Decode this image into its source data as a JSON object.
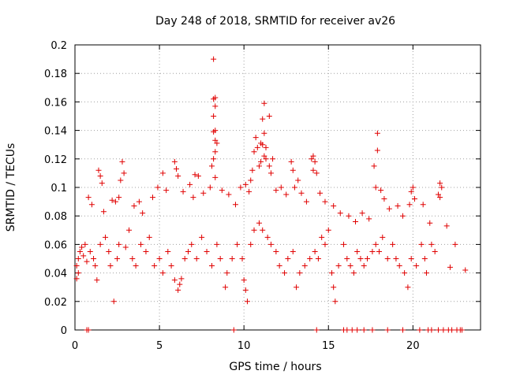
{
  "chart_data": {
    "type": "scatter",
    "title": "Day 248 of 2018, SRMTID for receiver av26",
    "xlabel": "GPS time / hours",
    "ylabel": "SRMTID / TECUs",
    "xlim": [
      0,
      24
    ],
    "ylim": [
      0,
      0.2
    ],
    "x_ticks": [
      0,
      5,
      10,
      15,
      20
    ],
    "x_tick_labels": [
      "0",
      "5",
      "10",
      "15",
      "20"
    ],
    "y_ticks": [
      0,
      0.02,
      0.04,
      0.06,
      0.08,
      0.1,
      0.12,
      0.14,
      0.16,
      0.18,
      0.2
    ],
    "y_tick_labels": [
      "0",
      "0.02",
      "0.04",
      "0.06",
      "0.08",
      "0.1",
      "0.12",
      "0.14",
      "0.16",
      "0.18",
      "0.2"
    ],
    "grid": true,
    "marker": "+",
    "color": "#e00000",
    "series": [
      {
        "name": "SRMTID",
        "points": [
          [
            8.2,
            0.19
          ],
          [
            8.3,
            0.163
          ],
          [
            8.2,
            0.162
          ],
          [
            8.3,
            0.157
          ],
          [
            8.2,
            0.15
          ],
          [
            8.3,
            0.14
          ],
          [
            8.2,
            0.139
          ],
          [
            8.3,
            0.133
          ],
          [
            8.4,
            0.131
          ],
          [
            8.3,
            0.125
          ],
          [
            8.2,
            0.12
          ],
          [
            8.1,
            0.115
          ],
          [
            8.3,
            0.107
          ],
          [
            11.2,
            0.159
          ],
          [
            11.5,
            0.15
          ],
          [
            11.1,
            0.148
          ],
          [
            11.2,
            0.138
          ],
          [
            11.0,
            0.131
          ],
          [
            11.1,
            0.13
          ],
          [
            11.3,
            0.128
          ],
          [
            11.2,
            0.122
          ],
          [
            11.3,
            0.12
          ],
          [
            11.0,
            0.118
          ],
          [
            11.5,
            0.115
          ],
          [
            11.6,
            0.11
          ],
          [
            11.7,
            0.12
          ],
          [
            10.7,
            0.135
          ],
          [
            10.8,
            0.128
          ],
          [
            10.6,
            0.125
          ],
          [
            10.9,
            0.115
          ],
          [
            10.5,
            0.112
          ],
          [
            10.4,
            0.105
          ],
          [
            17.9,
            0.138
          ],
          [
            17.9,
            0.126
          ],
          [
            17.7,
            0.115
          ],
          [
            17.8,
            0.1
          ],
          [
            18.1,
            0.098
          ],
          [
            18.3,
            0.092
          ],
          [
            14.0,
            0.12
          ],
          [
            14.1,
            0.122
          ],
          [
            14.2,
            0.118
          ],
          [
            14.1,
            0.112
          ],
          [
            14.3,
            0.11
          ],
          [
            12.8,
            0.118
          ],
          [
            12.9,
            0.112
          ],
          [
            13.2,
            0.105
          ],
          [
            13.0,
            0.1
          ],
          [
            2.8,
            0.118
          ],
          [
            2.9,
            0.11
          ],
          [
            2.7,
            0.105
          ],
          [
            1.4,
            0.112
          ],
          [
            1.5,
            0.108
          ],
          [
            1.6,
            0.103
          ],
          [
            5.9,
            0.118
          ],
          [
            6.0,
            0.113
          ],
          [
            6.1,
            0.108
          ],
          [
            5.2,
            0.11
          ],
          [
            7.1,
            0.109
          ],
          [
            7.3,
            0.108
          ],
          [
            21.6,
            0.103
          ],
          [
            21.7,
            0.1
          ],
          [
            21.5,
            0.095
          ],
          [
            21.6,
            0.093
          ],
          [
            20.0,
            0.1
          ],
          [
            19.9,
            0.097
          ],
          [
            20.1,
            0.092
          ],
          [
            19.8,
            0.088
          ],
          [
            0.8,
            0.093
          ],
          [
            1.0,
            0.088
          ],
          [
            1.7,
            0.083
          ],
          [
            2.2,
            0.091
          ],
          [
            2.4,
            0.09
          ],
          [
            2.6,
            0.093
          ],
          [
            3.5,
            0.087
          ],
          [
            3.8,
            0.09
          ],
          [
            4.0,
            0.082
          ],
          [
            4.6,
            0.093
          ],
          [
            4.9,
            0.1
          ],
          [
            5.4,
            0.098
          ],
          [
            6.4,
            0.097
          ],
          [
            6.8,
            0.102
          ],
          [
            7.0,
            0.093
          ],
          [
            7.6,
            0.096
          ],
          [
            8.0,
            0.1
          ],
          [
            8.7,
            0.098
          ],
          [
            9.1,
            0.095
          ],
          [
            9.5,
            0.088
          ],
          [
            9.8,
            0.1
          ],
          [
            10.1,
            0.102
          ],
          [
            10.3,
            0.097
          ],
          [
            11.9,
            0.098
          ],
          [
            12.2,
            0.1
          ],
          [
            12.5,
            0.095
          ],
          [
            13.4,
            0.096
          ],
          [
            13.7,
            0.09
          ],
          [
            14.5,
            0.096
          ],
          [
            14.8,
            0.09
          ],
          [
            15.3,
            0.087
          ],
          [
            15.7,
            0.082
          ],
          [
            16.2,
            0.08
          ],
          [
            16.6,
            0.076
          ],
          [
            17.0,
            0.082
          ],
          [
            17.4,
            0.078
          ],
          [
            18.6,
            0.085
          ],
          [
            19.1,
            0.087
          ],
          [
            19.4,
            0.08
          ],
          [
            20.6,
            0.088
          ],
          [
            21.0,
            0.075
          ],
          [
            22.0,
            0.073
          ],
          [
            22.5,
            0.06
          ],
          [
            21.1,
            0.06
          ],
          [
            0.1,
            0.036
          ],
          [
            0.2,
            0.04
          ],
          [
            0.1,
            0.045
          ],
          [
            0.2,
            0.05
          ],
          [
            0.3,
            0.055
          ],
          [
            0.4,
            0.058
          ],
          [
            0.5,
            0.052
          ],
          [
            0.6,
            0.06
          ],
          [
            0.7,
            0.048
          ],
          [
            0.9,
            0.055
          ],
          [
            1.1,
            0.05
          ],
          [
            1.2,
            0.045
          ],
          [
            1.3,
            0.035
          ],
          [
            1.5,
            0.06
          ],
          [
            1.8,
            0.065
          ],
          [
            2.0,
            0.055
          ],
          [
            2.1,
            0.045
          ],
          [
            2.3,
            0.02
          ],
          [
            2.5,
            0.05
          ],
          [
            2.6,
            0.06
          ],
          [
            3.0,
            0.058
          ],
          [
            3.2,
            0.07
          ],
          [
            3.4,
            0.05
          ],
          [
            3.6,
            0.045
          ],
          [
            3.9,
            0.06
          ],
          [
            4.2,
            0.055
          ],
          [
            4.4,
            0.065
          ],
          [
            4.7,
            0.045
          ],
          [
            5.0,
            0.05
          ],
          [
            5.2,
            0.04
          ],
          [
            5.5,
            0.055
          ],
          [
            5.7,
            0.045
          ],
          [
            5.9,
            0.035
          ],
          [
            6.1,
            0.028
          ],
          [
            6.2,
            0.032
          ],
          [
            6.3,
            0.036
          ],
          [
            6.5,
            0.05
          ],
          [
            6.7,
            0.055
          ],
          [
            6.9,
            0.06
          ],
          [
            7.2,
            0.05
          ],
          [
            7.5,
            0.065
          ],
          [
            7.8,
            0.055
          ],
          [
            8.1,
            0.045
          ],
          [
            8.4,
            0.06
          ],
          [
            8.6,
            0.05
          ],
          [
            8.9,
            0.03
          ],
          [
            9.0,
            0.04
          ],
          [
            9.3,
            0.05
          ],
          [
            9.6,
            0.06
          ],
          [
            9.9,
            0.05
          ],
          [
            10.0,
            0.035
          ],
          [
            10.1,
            0.028
          ],
          [
            10.2,
            0.02
          ],
          [
            10.4,
            0.06
          ],
          [
            10.6,
            0.07
          ],
          [
            10.9,
            0.075
          ],
          [
            11.1,
            0.07
          ],
          [
            11.4,
            0.065
          ],
          [
            11.6,
            0.06
          ],
          [
            11.9,
            0.055
          ],
          [
            12.1,
            0.045
          ],
          [
            12.4,
            0.04
          ],
          [
            12.6,
            0.05
          ],
          [
            12.9,
            0.055
          ],
          [
            13.1,
            0.03
          ],
          [
            13.3,
            0.04
          ],
          [
            13.6,
            0.045
          ],
          [
            13.9,
            0.05
          ],
          [
            14.2,
            0.055
          ],
          [
            14.4,
            0.05
          ],
          [
            14.6,
            0.065
          ],
          [
            14.8,
            0.06
          ],
          [
            15.0,
            0.07
          ],
          [
            15.2,
            0.04
          ],
          [
            15.3,
            0.03
          ],
          [
            15.4,
            0.02
          ],
          [
            15.6,
            0.045
          ],
          [
            15.9,
            0.06
          ],
          [
            16.1,
            0.05
          ],
          [
            16.3,
            0.045
          ],
          [
            16.5,
            0.04
          ],
          [
            16.7,
            0.055
          ],
          [
            16.9,
            0.05
          ],
          [
            17.1,
            0.045
          ],
          [
            17.3,
            0.05
          ],
          [
            17.6,
            0.055
          ],
          [
            17.8,
            0.06
          ],
          [
            18.0,
            0.055
          ],
          [
            18.2,
            0.065
          ],
          [
            18.5,
            0.05
          ],
          [
            18.8,
            0.06
          ],
          [
            19.0,
            0.05
          ],
          [
            19.2,
            0.045
          ],
          [
            19.5,
            0.04
          ],
          [
            19.7,
            0.03
          ],
          [
            19.9,
            0.05
          ],
          [
            20.2,
            0.045
          ],
          [
            20.5,
            0.06
          ],
          [
            20.7,
            0.05
          ],
          [
            20.8,
            0.04
          ],
          [
            21.3,
            0.055
          ],
          [
            22.2,
            0.044
          ],
          [
            23.1,
            0.042
          ],
          [
            0.7,
            0.0
          ],
          [
            0.8,
            0.0
          ],
          [
            9.4,
            0.0
          ],
          [
            14.3,
            0.0
          ],
          [
            15.9,
            0.0
          ],
          [
            16.1,
            0.0
          ],
          [
            16.4,
            0.0
          ],
          [
            16.7,
            0.0
          ],
          [
            17.1,
            0.0
          ],
          [
            17.6,
            0.0
          ],
          [
            18.5,
            0.0
          ],
          [
            19.4,
            0.0
          ],
          [
            20.4,
            0.0
          ],
          [
            20.9,
            0.0
          ],
          [
            21.1,
            0.0
          ],
          [
            21.5,
            0.0
          ],
          [
            21.8,
            0.0
          ],
          [
            22.1,
            0.0
          ],
          [
            22.3,
            0.0
          ],
          [
            22.6,
            0.0
          ],
          [
            22.8,
            0.0
          ],
          [
            22.9,
            0.0
          ]
        ]
      }
    ]
  }
}
